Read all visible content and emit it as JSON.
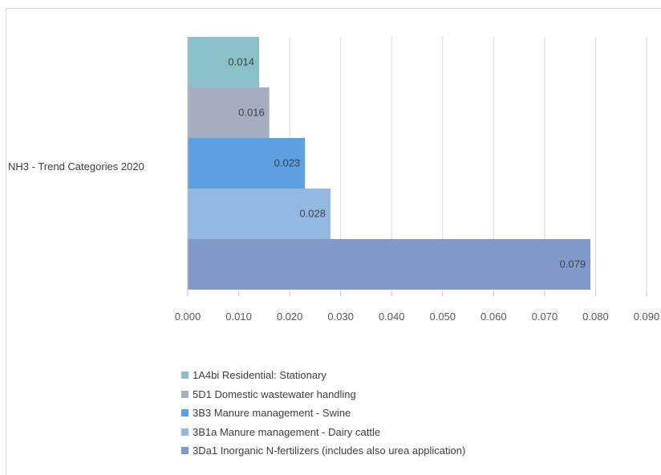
{
  "chart_data": {
    "type": "bar",
    "orientation": "horizontal",
    "category_label": "NH3 - Trend Categories  2020",
    "series": [
      {
        "name": "1A4bi Residential: Stationary",
        "value": 0.014,
        "label": "0.014",
        "color": "#8BC0C8"
      },
      {
        "name": "5D1 Domestic wastewater handling",
        "value": 0.016,
        "label": "0.016",
        "color": "#A6ADC1"
      },
      {
        "name": "3B3 Manure management - Swine",
        "value": 0.023,
        "label": "0.023",
        "color": "#5DA0E2"
      },
      {
        "name": "3B1a Manure management - Dairy cattle",
        "value": 0.028,
        "label": "0.028",
        "color": "#93B9E0"
      },
      {
        "name": "3Da1 Inorganic N-fertilizers (includes also urea application)",
        "value": 0.079,
        "label": "0.079",
        "color": "#8499CB"
      }
    ],
    "xlim": [
      0,
      0.09
    ],
    "x_ticks": [
      "0.000",
      "0.010",
      "0.020",
      "0.030",
      "0.040",
      "0.050",
      "0.060",
      "0.070",
      "0.080",
      "0.090"
    ],
    "grid": "vertical",
    "legend_position": "bottom"
  }
}
